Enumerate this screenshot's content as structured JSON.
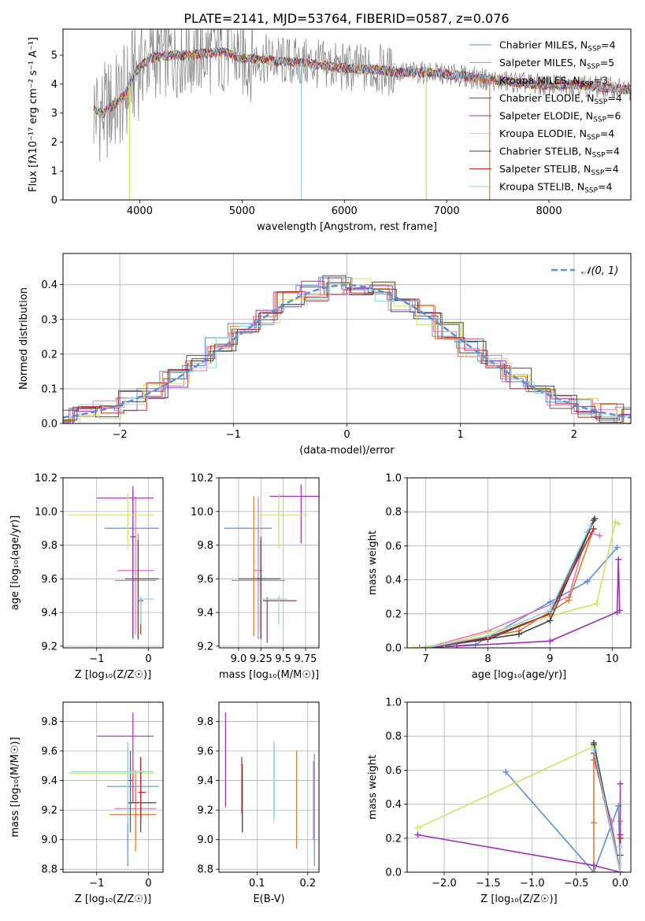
{
  "figure": {
    "title": "PLATE=2141, MJD=53764, FIBERID=0587, z=0.076"
  },
  "series_styles": [
    {
      "name": "Chabrier MILES",
      "n": "4",
      "color": "#5b8fd9"
    },
    {
      "name": "Salpeter MILES",
      "n": "5",
      "color": "#e377c2"
    },
    {
      "name": "Kroupa MILES",
      "n": "3",
      "color": "#e07b2a"
    },
    {
      "name": "Chabrier ELODIE",
      "n": "4",
      "color": "#555555"
    },
    {
      "name": "Salpeter ELODIE",
      "n": "6",
      "color": "#a030b8"
    },
    {
      "name": "Kroupa ELODIE",
      "n": "4",
      "color": "#d4e35a"
    },
    {
      "name": "Chabrier STELIB",
      "n": "4",
      "color": "#444444"
    },
    {
      "name": "Salpeter STELIB",
      "n": "4",
      "color": "#c0262a"
    },
    {
      "name": "Kroupa STELIB",
      "n": "4",
      "color": "#8fd6e6"
    }
  ],
  "chart_data": [
    {
      "id": "spectrum",
      "type": "line",
      "title": "PLATE=2141, MJD=53764, FIBERID=0587, z=0.076",
      "xlabel": "wavelength [Angstrom, rest frame]",
      "ylabel": "Flux [fλ10⁻¹⁷ erg cm⁻² s⁻¹ A⁻¹]",
      "xlim": [
        3250,
        8800
      ],
      "ylim": [
        0,
        5.9
      ],
      "xticks": [
        4000,
        5000,
        6000,
        7000,
        8000
      ],
      "yticks": [
        0,
        1,
        2,
        3,
        4,
        5
      ],
      "grid": false,
      "legend": "top-right",
      "data_color": "#808080",
      "model_color": "#7fd8d8",
      "continuum": [
        [
          3550,
          3.1
        ],
        [
          3650,
          3.0
        ],
        [
          3750,
          3.3
        ],
        [
          3850,
          3.6
        ],
        [
          3950,
          4.4
        ],
        [
          4100,
          4.9
        ],
        [
          4300,
          5.0
        ],
        [
          4500,
          5.0
        ],
        [
          4700,
          5.1
        ],
        [
          4860,
          5.1
        ],
        [
          5000,
          4.9
        ],
        [
          5200,
          4.85
        ],
        [
          5500,
          4.75
        ],
        [
          5800,
          4.65
        ],
        [
          6000,
          4.55
        ],
        [
          6300,
          4.5
        ],
        [
          6560,
          4.4
        ],
        [
          6800,
          4.4
        ],
        [
          7100,
          4.3
        ],
        [
          7400,
          4.15
        ],
        [
          7700,
          4.05
        ],
        [
          8000,
          3.95
        ],
        [
          8200,
          4.0
        ],
        [
          8500,
          3.9
        ],
        [
          8800,
          3.8
        ]
      ],
      "dips": [
        3900,
        5580,
        6800,
        7420
      ]
    },
    {
      "id": "residuals",
      "type": "step",
      "xlabel": "(data-model)/error",
      "ylabel": "Normed distribution",
      "xlim": [
        -2.5,
        2.5
      ],
      "ylim": [
        0,
        0.49
      ],
      "xticks": [
        -2,
        -1,
        0,
        1,
        2
      ],
      "xticklabels": [
        "−2",
        "−1",
        "0",
        "1",
        "2"
      ],
      "yticks": [
        0,
        0.1,
        0.2,
        0.3,
        0.4
      ],
      "yticklabels": [
        "0.0",
        "0.1",
        "0.2",
        "0.3",
        "0.4"
      ],
      "grid": true,
      "legend": "top-right",
      "reference": {
        "name": "𝒩(0, 1)",
        "color": "#5b8fd9"
      },
      "bin_width": 0.2
    },
    {
      "id": "age_vs_z",
      "type": "errorbar",
      "xlabel": "Z [log₁₀(Z/Z☉)]",
      "ylabel": "age  [log₁₀(age/yr)]",
      "xlim": [
        -1.65,
        0.28
      ],
      "ylim": [
        9.19,
        10.2
      ],
      "xticks": [
        -1,
        0
      ],
      "xticklabels": [
        "−1",
        "0"
      ],
      "yticks": [
        9.2,
        9.4,
        9.6,
        9.8,
        10.0,
        10.2
      ],
      "yticklabels": [
        "9.2",
        "9.4",
        "9.6",
        "9.8",
        "10.0",
        "10.2"
      ],
      "grid": true,
      "points": [
        {
          "x": -0.3,
          "xerr": [
            0.55,
            0.5
          ],
          "y": 9.9,
          "yerr": [
            0.66,
            0.02
          ],
          "color": "#5b8fd9"
        },
        {
          "x": -0.25,
          "xerr": [
            0.35,
            0.35
          ],
          "y": 9.65,
          "yerr": [
            0.38,
            0.44
          ],
          "color": "#e377c2"
        },
        {
          "x": -0.2,
          "xerr": [
            0.45,
            0.35
          ],
          "y": 9.59,
          "yerr": [
            0.33,
            0.28
          ],
          "color": "#e07b2a"
        },
        {
          "x": -0.3,
          "xerr": [
            0.05,
            0.05
          ],
          "y": 9.85,
          "yerr": [
            0.6,
            0.27
          ],
          "color": "#555555"
        },
        {
          "x": -0.3,
          "xerr": [
            0.7,
            0.4
          ],
          "y": 10.08,
          "yerr": [
            0.8,
            0.07
          ],
          "color": "#a030b8"
        },
        {
          "x": -0.4,
          "xerr": [
            1.15,
            0.5
          ],
          "y": 9.98,
          "yerr": [
            0.2,
            0.13
          ],
          "color": "#d4e35a"
        },
        {
          "x": -0.2,
          "xerr": [
            0.25,
            0.4
          ],
          "y": 9.6,
          "yerr": [
            0.36,
            0.23
          ],
          "color": "#444444"
        },
        {
          "x": -0.15,
          "xerr": [
            0.05,
            0.05
          ],
          "y": 9.47,
          "yerr": [
            0.2,
            0.02
          ],
          "color": "#c0262a"
        },
        {
          "x": -0.15,
          "xerr": [
            0.05,
            0.25
          ],
          "y": 9.48,
          "yerr": [
            0.15,
            0.02
          ],
          "color": "#8fd6e6"
        }
      ]
    },
    {
      "id": "age_vs_mass",
      "type": "errorbar",
      "xlabel": "mass [log₁₀(M/M☉)]",
      "ylabel": "",
      "xlim": [
        8.78,
        9.9
      ],
      "ylim": [
        9.19,
        10.2
      ],
      "xticks": [
        9.0,
        9.25,
        9.5,
        9.75
      ],
      "xticklabels": [
        "9.0",
        "9.25",
        "9.5",
        "9.75"
      ],
      "yticks": [
        9.2,
        9.4,
        9.6,
        9.8,
        10.0,
        10.2
      ],
      "yticklabels": [
        "9.2",
        "9.4",
        "9.6",
        "9.8",
        "10.0",
        "10.2"
      ],
      "grid": true,
      "points": [
        {
          "x": 9.22,
          "xerr": [
            0.38,
            0.15
          ],
          "y": 9.9,
          "yerr": [
            0.66,
            0.02
          ],
          "color": "#5b8fd9"
        },
        {
          "x": 9.22,
          "xerr": [
            0.05,
            0.05
          ],
          "y": 9.65,
          "yerr": [
            0.38,
            0.44
          ],
          "color": "#e377c2"
        },
        {
          "x": 9.17,
          "xerr": [
            0.25,
            0.35
          ],
          "y": 9.59,
          "yerr": [
            0.33,
            0.5
          ],
          "color": "#e07b2a"
        },
        {
          "x": 9.25,
          "xerr": [
            0.05,
            0.05
          ],
          "y": 9.6,
          "yerr": [
            0.35,
            0.25
          ],
          "color": "#555555"
        },
        {
          "x": 9.7,
          "xerr": [
            0.35,
            0.33
          ],
          "y": 10.09,
          "yerr": [
            0.28,
            0.07
          ],
          "color": "#a030b8"
        },
        {
          "x": 9.45,
          "xerr": [
            0.25,
            0.32
          ],
          "y": 9.98,
          "yerr": [
            0.2,
            0.13
          ],
          "color": "#d4e35a"
        },
        {
          "x": 9.25,
          "xerr": [
            0.25,
            0.22
          ],
          "y": 9.6,
          "yerr": [
            0.36,
            0.23
          ],
          "color": "#444444"
        },
        {
          "x": 9.32,
          "xerr": [
            0.05,
            0.33
          ],
          "y": 9.47,
          "yerr": [
            0.25,
            0.02
          ],
          "color": "#c0262a"
        },
        {
          "x": 9.45,
          "xerr": [
            0.2,
            0.1
          ],
          "y": 9.48,
          "yerr": [
            0.15,
            0.02
          ],
          "color": "#8fd6e6"
        }
      ]
    },
    {
      "id": "mass_weight_vs_age",
      "type": "line",
      "xlabel": "age  [log₁₀(age/yr)]",
      "ylabel": "mass weight",
      "xlim": [
        6.7,
        10.3
      ],
      "ylim": [
        0,
        1.0
      ],
      "xticks": [
        7,
        8,
        9,
        10
      ],
      "yticks": [
        0,
        0.2,
        0.4,
        0.6,
        0.8,
        1.0
      ],
      "yticklabels": [
        "0.0",
        "0.2",
        "0.4",
        "0.6",
        "0.8",
        "1.0"
      ],
      "grid": true,
      "series": [
        {
          "x": [
            6.9,
            7.8,
            9.0,
            9.6,
            10.08
          ],
          "y": [
            0.0,
            0.02,
            0.27,
            0.39,
            0.59
          ],
          "color": "#5b8fd9"
        },
        {
          "x": [
            7.0,
            8.0,
            9.3,
            9.6,
            9.8
          ],
          "y": [
            0.0,
            0.1,
            0.3,
            0.68,
            0.66
          ],
          "color": "#e377c2"
        },
        {
          "x": [
            7.0,
            8.5,
            9.3,
            9.7
          ],
          "y": [
            0.0,
            0.1,
            0.28,
            0.7
          ],
          "color": "#e07b2a"
        },
        {
          "x": [
            7.0,
            8.0,
            9.0,
            9.7
          ],
          "y": [
            0.0,
            0.05,
            0.2,
            0.75
          ],
          "color": "#555555"
        },
        {
          "x": [
            6.9,
            7.5,
            9.0,
            10.08,
            10.1,
            10.12
          ],
          "y": [
            0.0,
            0.01,
            0.04,
            0.21,
            0.52,
            0.22
          ],
          "color": "#a030b8"
        },
        {
          "x": [
            6.8,
            7.3,
            8.0,
            9.75,
            10.05,
            10.1
          ],
          "y": [
            0.0,
            0.02,
            0.09,
            0.26,
            0.74,
            0.73
          ],
          "color": "#d4e35a"
        },
        {
          "x": [
            7.0,
            8.5,
            9.0,
            9.72
          ],
          "y": [
            0.0,
            0.08,
            0.16,
            0.76
          ],
          "color": "#444444"
        },
        {
          "x": [
            7.0,
            8.0,
            9.0,
            9.7
          ],
          "y": [
            0.0,
            0.06,
            0.2,
            0.7
          ],
          "color": "#c0262a"
        },
        {
          "x": [
            7.0,
            8.0,
            9.0,
            9.65
          ],
          "y": [
            0.0,
            0.07,
            0.22,
            0.72
          ],
          "color": "#8fd6e6"
        }
      ]
    },
    {
      "id": "mass_vs_z",
      "type": "errorbar",
      "xlabel": "Z [log₁₀(Z/Z☉)]",
      "ylabel": "mass [log₁₀(M/M☉)]",
      "xlim": [
        -1.65,
        0.28
      ],
      "ylim": [
        8.78,
        9.93
      ],
      "xticks": [
        -1,
        0
      ],
      "xticklabels": [
        "−1",
        "0"
      ],
      "yticks": [
        8.8,
        9.0,
        9.2,
        9.4,
        9.6,
        9.8
      ],
      "yticklabels": [
        "8.8",
        "9.0",
        "9.2",
        "9.4",
        "9.6",
        "9.8"
      ],
      "grid": true,
      "points": [
        {
          "x": -0.4,
          "xerr": [
            0.4,
            0.6
          ],
          "y": 9.36,
          "yerr": [
            0.54,
            0.3
          ],
          "color": "#5b8fd9"
        },
        {
          "x": -0.25,
          "xerr": [
            0.4,
            0.4
          ],
          "y": 9.21,
          "yerr": [
            0.2,
            0.2
          ],
          "color": "#e377c2"
        },
        {
          "x": -0.25,
          "xerr": [
            0.5,
            0.4
          ],
          "y": 9.17,
          "yerr": [
            0.25,
            0.3
          ],
          "color": "#e07b2a"
        },
        {
          "x": -0.35,
          "xerr": [
            0.05,
            0.05
          ],
          "y": 9.4,
          "yerr": [
            0.35,
            0.2
          ],
          "color": "#555555"
        },
        {
          "x": -0.3,
          "xerr": [
            0.7,
            0.4
          ],
          "y": 9.7,
          "yerr": [
            0.45,
            0.16
          ],
          "color": "#a030b8"
        },
        {
          "x": -0.4,
          "xerr": [
            1.15,
            0.5
          ],
          "y": 9.45,
          "yerr": [
            0.3,
            0.2
          ],
          "color": "#d4e35a"
        },
        {
          "x": -0.15,
          "xerr": [
            0.25,
            0.3
          ],
          "y": 9.25,
          "yerr": [
            0.2,
            0.3
          ],
          "color": "#444444"
        },
        {
          "x": -0.15,
          "xerr": [
            0.05,
            0.1
          ],
          "y": 9.32,
          "yerr": [
            0.2,
            0.24
          ],
          "color": "#c0262a"
        },
        {
          "x": -0.4,
          "xerr": [
            1.1,
            0.5
          ],
          "y": 9.46,
          "yerr": [
            0.35,
            0.2
          ],
          "color": "#8fd6e6"
        }
      ]
    },
    {
      "id": "mass_vs_ebv",
      "type": "errorbar",
      "xlabel": "E(B-V)",
      "ylabel": "",
      "xlim": [
        0.025,
        0.222
      ],
      "ylim": [
        8.78,
        9.93
      ],
      "xticks": [
        0.1,
        0.2
      ],
      "xticklabels": [
        "0.1",
        "0.2"
      ],
      "yticks": [
        8.8,
        9.0,
        9.2,
        9.4,
        9.6,
        9.8
      ],
      "yticklabels": [
        "8.8",
        "9.0",
        "9.2",
        "9.4",
        "9.6",
        "9.8"
      ],
      "grid": true,
      "points": [
        {
          "x": 0.213,
          "y": 9.2,
          "yerr": [
            0.38,
            0.38
          ],
          "color": "#5b8fd9"
        },
        {
          "x": 0.211,
          "y": 9.25,
          "yerr": [
            0.25,
            0.28
          ],
          "color": "#e377c2"
        },
        {
          "x": 0.178,
          "y": 9.27,
          "yerr": [
            0.33,
            0.33
          ],
          "color": "#e07b2a"
        },
        {
          "x": 0.071,
          "y": 9.28,
          "yerr": [
            0.23,
            0.23
          ],
          "color": "#555555"
        },
        {
          "x": 0.038,
          "y": 9.54,
          "yerr": [
            0.32,
            0.32
          ],
          "color": "#a030b8"
        },
        {
          "x": 0.133,
          "y": 9.39,
          "yerr": [
            0.28,
            0.28
          ],
          "color": "#d4e35a"
        },
        {
          "x": 0.071,
          "y": 9.27,
          "yerr": [
            0.22,
            0.22
          ],
          "color": "#444444"
        },
        {
          "x": 0.07,
          "y": 9.38,
          "yerr": [
            0.2,
            0.18
          ],
          "color": "#c0262a"
        },
        {
          "x": 0.134,
          "y": 9.4,
          "yerr": [
            0.25,
            0.25
          ],
          "color": "#8fd6e6"
        }
      ]
    },
    {
      "id": "mass_weight_vs_z",
      "type": "line",
      "xlabel": "Z [log₁₀(Z/Z☉)]",
      "ylabel": "mass weight",
      "xlim": [
        -2.42,
        0.12
      ],
      "ylim": [
        0,
        1.0
      ],
      "xticks": [
        -2.0,
        -1.5,
        -1.0,
        -0.5,
        0.0
      ],
      "xticklabels": [
        "−2.0",
        "−1.5",
        "−1.0",
        "−0.5",
        "0.0"
      ],
      "yticks": [
        0,
        0.2,
        0.4,
        0.6,
        0.8,
        1.0
      ],
      "yticklabels": [
        "0.0",
        "0.2",
        "0.4",
        "0.6",
        "0.8",
        "1.0"
      ],
      "grid": true,
      "series": [
        {
          "x": [
            -1.3,
            -0.3,
            -0.02,
            0.0
          ],
          "y": [
            0.59,
            0.0,
            0.39,
            0.0
          ],
          "color": "#5b8fd9"
        },
        {
          "x": [
            -0.3,
            -0.1,
            0.0,
            0.0
          ],
          "y": [
            0.66,
            0.3,
            0.0,
            0.3
          ],
          "color": "#e377c2"
        },
        {
          "x": [
            -0.3,
            -0.3,
            -0.3
          ],
          "y": [
            0.0,
            0.66,
            0.29
          ],
          "color": "#e07b2a"
        },
        {
          "x": [
            -0.3,
            0.0,
            0.0
          ],
          "y": [
            0.75,
            0.0,
            0.2
          ],
          "color": "#555555"
        },
        {
          "x": [
            -2.3,
            -0.3,
            0.0,
            0.0,
            0.0
          ],
          "y": [
            0.22,
            0.04,
            0.0,
            0.52,
            0.22
          ],
          "color": "#a030b8"
        },
        {
          "x": [
            -2.3,
            -0.3,
            0.0
          ],
          "y": [
            0.26,
            0.74,
            0.0
          ],
          "color": "#d4e35a"
        },
        {
          "x": [
            -0.3,
            0.0,
            0.0
          ],
          "y": [
            0.76,
            0.0,
            0.1
          ],
          "color": "#444444"
        },
        {
          "x": [
            -0.3,
            0.0,
            0.0
          ],
          "y": [
            0.7,
            0.0,
            0.2
          ],
          "color": "#c0262a"
        },
        {
          "x": [
            -0.3,
            0.0,
            0.0
          ],
          "y": [
            0.72,
            0.0,
            0.15
          ],
          "color": "#8fd6e6"
        }
      ]
    }
  ]
}
